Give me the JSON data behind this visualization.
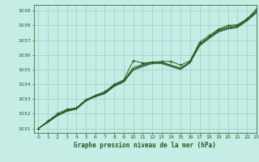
{
  "title": "Graphe pression niveau de la mer (hPa)",
  "bg_color": "#c6ece6",
  "grid_color": "#9dcfc8",
  "line_color": "#1e5c1e",
  "xlim": [
    -0.5,
    23
  ],
  "ylim": [
    1030.7,
    1039.4
  ],
  "yticks": [
    1031,
    1032,
    1033,
    1034,
    1035,
    1036,
    1037,
    1038,
    1039
  ],
  "xticks": [
    0,
    1,
    2,
    3,
    4,
    5,
    6,
    7,
    8,
    9,
    10,
    11,
    12,
    13,
    14,
    15,
    16,
    17,
    18,
    19,
    20,
    21,
    22,
    23
  ],
  "series": [
    [
      1031.0,
      1031.5,
      1032.0,
      1032.3,
      1032.4,
      1032.95,
      1033.25,
      1033.5,
      1034.0,
      1034.3,
      1035.6,
      1035.45,
      1035.5,
      1035.55,
      1035.55,
      1035.3,
      1035.6,
      1036.85,
      1037.3,
      1037.75,
      1038.0,
      1038.05,
      1038.45,
      1039.1
    ],
    [
      1031.0,
      1031.45,
      1031.9,
      1032.25,
      1032.35,
      1032.9,
      1033.2,
      1033.45,
      1033.95,
      1034.25,
      1035.15,
      1035.35,
      1035.5,
      1035.5,
      1035.3,
      1035.1,
      1035.55,
      1036.75,
      1037.2,
      1037.7,
      1037.9,
      1038.0,
      1038.4,
      1039.0
    ],
    [
      1031.0,
      1031.45,
      1031.9,
      1032.2,
      1032.35,
      1032.9,
      1033.2,
      1033.4,
      1033.9,
      1034.2,
      1035.05,
      1035.3,
      1035.5,
      1035.5,
      1035.3,
      1035.1,
      1035.5,
      1036.7,
      1037.2,
      1037.65,
      1037.85,
      1037.95,
      1038.4,
      1038.95
    ],
    [
      1031.0,
      1031.45,
      1031.9,
      1032.2,
      1032.35,
      1032.9,
      1033.2,
      1033.4,
      1033.9,
      1034.2,
      1035.0,
      1035.25,
      1035.45,
      1035.45,
      1035.25,
      1035.05,
      1035.5,
      1036.65,
      1037.15,
      1037.6,
      1037.8,
      1037.9,
      1038.35,
      1038.9
    ],
    [
      1031.0,
      1031.4,
      1031.85,
      1032.15,
      1032.3,
      1032.85,
      1033.15,
      1033.35,
      1033.85,
      1034.15,
      1034.95,
      1035.2,
      1035.4,
      1035.4,
      1035.2,
      1035.0,
      1035.45,
      1036.6,
      1037.1,
      1037.55,
      1037.75,
      1037.85,
      1038.3,
      1038.85
    ]
  ]
}
